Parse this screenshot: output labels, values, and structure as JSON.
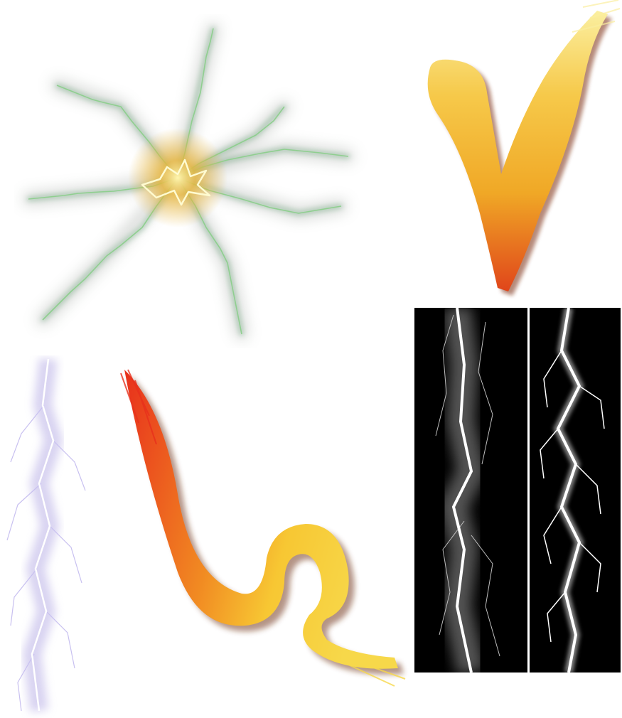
{
  "assets": [
    {
      "name": "lightning-starburst",
      "colors": {
        "core": "#fff6b0",
        "glow": "#e8b53a",
        "branches": "#7fae8c",
        "haze": "#9aa09a"
      }
    },
    {
      "name": "brush-check-stroke",
      "colors": {
        "top": "#fbefa0",
        "mid": "#f0a826",
        "bottom": "#e0451a",
        "edge": "#7a2a10"
      }
    },
    {
      "name": "purple-lightning-bolt",
      "colors": {
        "glow": "#b9b0e6",
        "core": "#ffffff"
      }
    },
    {
      "name": "brush-s-stroke",
      "colors": {
        "red": "#e8301c",
        "orange": "#f18a22",
        "yellow": "#f7c733",
        "edge": "#6a2a10"
      }
    },
    {
      "name": "lightning-panel-soft",
      "colors": {
        "bg": "#000000",
        "bolt": "#ffffff",
        "glow": "#8a8a8a"
      }
    },
    {
      "name": "lightning-panel-sharp",
      "colors": {
        "bg": "#000000",
        "bolt": "#ffffff"
      }
    }
  ]
}
